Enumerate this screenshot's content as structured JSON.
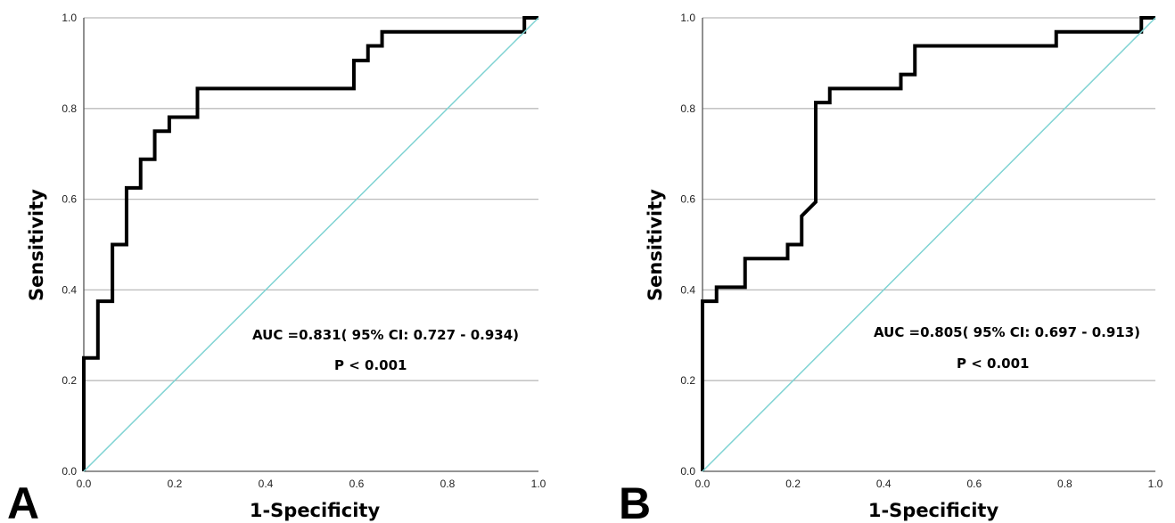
{
  "figure": {
    "panels": [
      {
        "label": "A",
        "ylabel": "Sensitivity",
        "xlabel": "1-Specificity",
        "auc_text": "AUC =0.831( 95% CI: 0.727 - 0.934)",
        "p_text": "P < 0.001"
      },
      {
        "label": "B",
        "ylabel": "Sensitivity",
        "xlabel": "1-Specificity",
        "auc_text": "AUC =0.805( 95% CI: 0.697 - 0.913)",
        "p_text": "P < 0.001"
      }
    ]
  },
  "chart_data": [
    {
      "type": "line",
      "panel": "A",
      "title": "",
      "xlabel": "1-Specificity",
      "ylabel": "Sensitivity",
      "xlim": [
        0,
        1
      ],
      "ylim": [
        0,
        1
      ],
      "xticks": [
        "0.0",
        "0.2",
        "0.4",
        "0.6",
        "0.8",
        "1.0"
      ],
      "yticks": [
        "0.0",
        "0.2",
        "0.4",
        "0.6",
        "0.8",
        "1.0"
      ],
      "grid": "horizontal",
      "annotations": [
        "AUC =0.831( 95% CI: 0.727 - 0.934)",
        "P < 0.001"
      ],
      "colors": {
        "roc": "#000000",
        "reference": "#7fd3d3",
        "grid": "#bbbbbb"
      },
      "series": [
        {
          "role": "roc",
          "x": [
            0,
            0,
            0.031,
            0.031,
            0.063,
            0.063,
            0.094,
            0.094,
            0.125,
            0.125,
            0.156,
            0.156,
            0.188,
            0.188,
            0.25,
            0.25,
            0.594,
            0.594,
            0.625,
            0.625,
            0.656,
            0.656,
            0.969,
            0.969,
            1.0
          ],
          "y": [
            0,
            0.25,
            0.25,
            0.375,
            0.375,
            0.5,
            0.5,
            0.625,
            0.625,
            0.688,
            0.688,
            0.75,
            0.75,
            0.781,
            0.781,
            0.844,
            0.844,
            0.906,
            0.906,
            0.938,
            0.938,
            0.969,
            0.969,
            1.0,
            1.0
          ]
        },
        {
          "role": "reference",
          "x": [
            0,
            1
          ],
          "y": [
            0,
            1
          ]
        }
      ]
    },
    {
      "type": "line",
      "panel": "B",
      "title": "",
      "xlabel": "1-Specificity",
      "ylabel": "Sensitivity",
      "xlim": [
        0,
        1
      ],
      "ylim": [
        0,
        1
      ],
      "xticks": [
        "0.0",
        "0.2",
        "0.4",
        "0.6",
        "0.8",
        "1.0"
      ],
      "yticks": [
        "0.0",
        "0.2",
        "0.4",
        "0.6",
        "0.8",
        "1.0"
      ],
      "grid": "horizontal",
      "annotations": [
        "AUC =0.805( 95% CI: 0.697 - 0.913)",
        "P < 0.001"
      ],
      "colors": {
        "roc": "#000000",
        "reference": "#7fd3d3",
        "grid": "#bbbbbb"
      },
      "series": [
        {
          "role": "roc",
          "x": [
            0,
            0,
            0.031,
            0.031,
            0.094,
            0.094,
            0.188,
            0.188,
            0.219,
            0.219,
            0.25,
            0.25,
            0.281,
            0.281,
            0.438,
            0.438,
            0.469,
            0.469,
            0.781,
            0.781,
            0.969,
            0.969,
            1.0
          ],
          "y": [
            0,
            0.375,
            0.375,
            0.406,
            0.406,
            0.469,
            0.469,
            0.5,
            0.5,
            0.563,
            0.594,
            0.813,
            0.813,
            0.844,
            0.844,
            0.875,
            0.875,
            0.938,
            0.938,
            0.969,
            0.969,
            1.0,
            1.0
          ]
        },
        {
          "role": "reference",
          "x": [
            0,
            1
          ],
          "y": [
            0,
            1
          ]
        }
      ]
    }
  ]
}
